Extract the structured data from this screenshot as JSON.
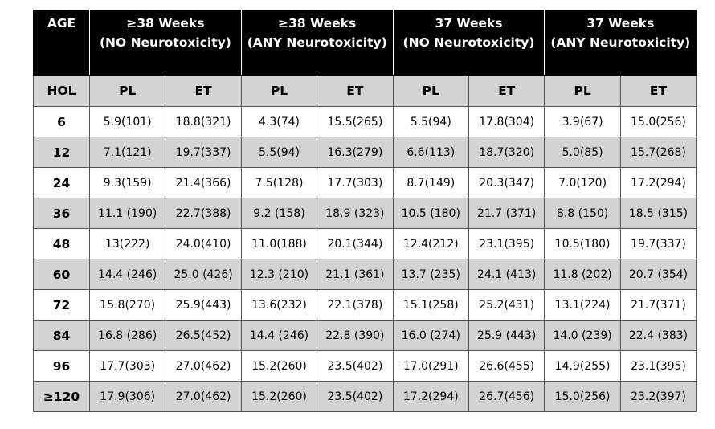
{
  "table": {
    "age_label": "AGE",
    "groups": [
      {
        "line1": "≥38 Weeks",
        "line2": "(NO Neurotoxicity)"
      },
      {
        "line1": "≥38 Weeks",
        "line2": "(ANY Neurotoxicity)"
      },
      {
        "line1": "37 Weeks",
        "line2": "(NO Neurotoxicity)"
      },
      {
        "line1": "37 Weeks",
        "line2": "(ANY Neurotoxicity)"
      }
    ],
    "hol_label": "HOL",
    "subheaders": [
      "PL",
      "ET",
      "PL",
      "ET",
      "PL",
      "ET",
      "PL",
      "ET"
    ],
    "rows": [
      [
        "6",
        "5.9(101)",
        "18.8(321)",
        "4.3(74)",
        "15.5(265)",
        "5.5(94)",
        "17.8(304)",
        "3.9(67)",
        "15.0(256)"
      ],
      [
        "12",
        "7.1(121)",
        "19.7(337)",
        "5.5(94)",
        "16.3(279)",
        "6.6(113)",
        "18.7(320)",
        "5.0(85)",
        "15.7(268)"
      ],
      [
        "24",
        "9.3(159)",
        "21.4(366)",
        "7.5(128)",
        "17.7(303)",
        "8.7(149)",
        "20.3(347)",
        "7.0(120)",
        "17.2(294)"
      ],
      [
        "36",
        "11.1 (190)",
        "22.7(388)",
        "9.2 (158)",
        "18.9 (323)",
        "10.5 (180)",
        "21.7 (371)",
        "8.8 (150)",
        "18.5 (315)"
      ],
      [
        "48",
        "13(222)",
        "24.0(410)",
        "11.0(188)",
        "20.1(344)",
        "12.4(212)",
        "23.1(395)",
        "10.5(180)",
        "19.7(337)"
      ],
      [
        "60",
        "14.4 (246)",
        "25.0 (426)",
        "12.3 (210)",
        "21.1 (361)",
        "13.7 (235)",
        "24.1 (413)",
        "11.8 (202)",
        "20.7 (354)"
      ],
      [
        "72",
        "15.8(270)",
        "25.9(443)",
        "13.6(232)",
        "22.1(378)",
        "15.1(258)",
        "25.2(431)",
        "13.1(224)",
        "21.7(371)"
      ],
      [
        "84",
        "16.8 (286)",
        "26.5(452)",
        "14.4 (246)",
        "22.8 (390)",
        "16.0 (274)",
        "25.9 (443)",
        "14.0 (239)",
        "22.4 (383)"
      ],
      [
        "96",
        "17.7(303)",
        "27.0(462)",
        "15.2(260)",
        "23.5(402)",
        "17.0(291)",
        "26.6(455)",
        "14.9(255)",
        "23.1(395)"
      ],
      [
        "≥120",
        "17.9(306)",
        "27.0(462)",
        "15.2(260)",
        "23.5(402)",
        "17.2(294)",
        "26.7(456)",
        "15.0(256)",
        "23.2(397)"
      ]
    ]
  }
}
